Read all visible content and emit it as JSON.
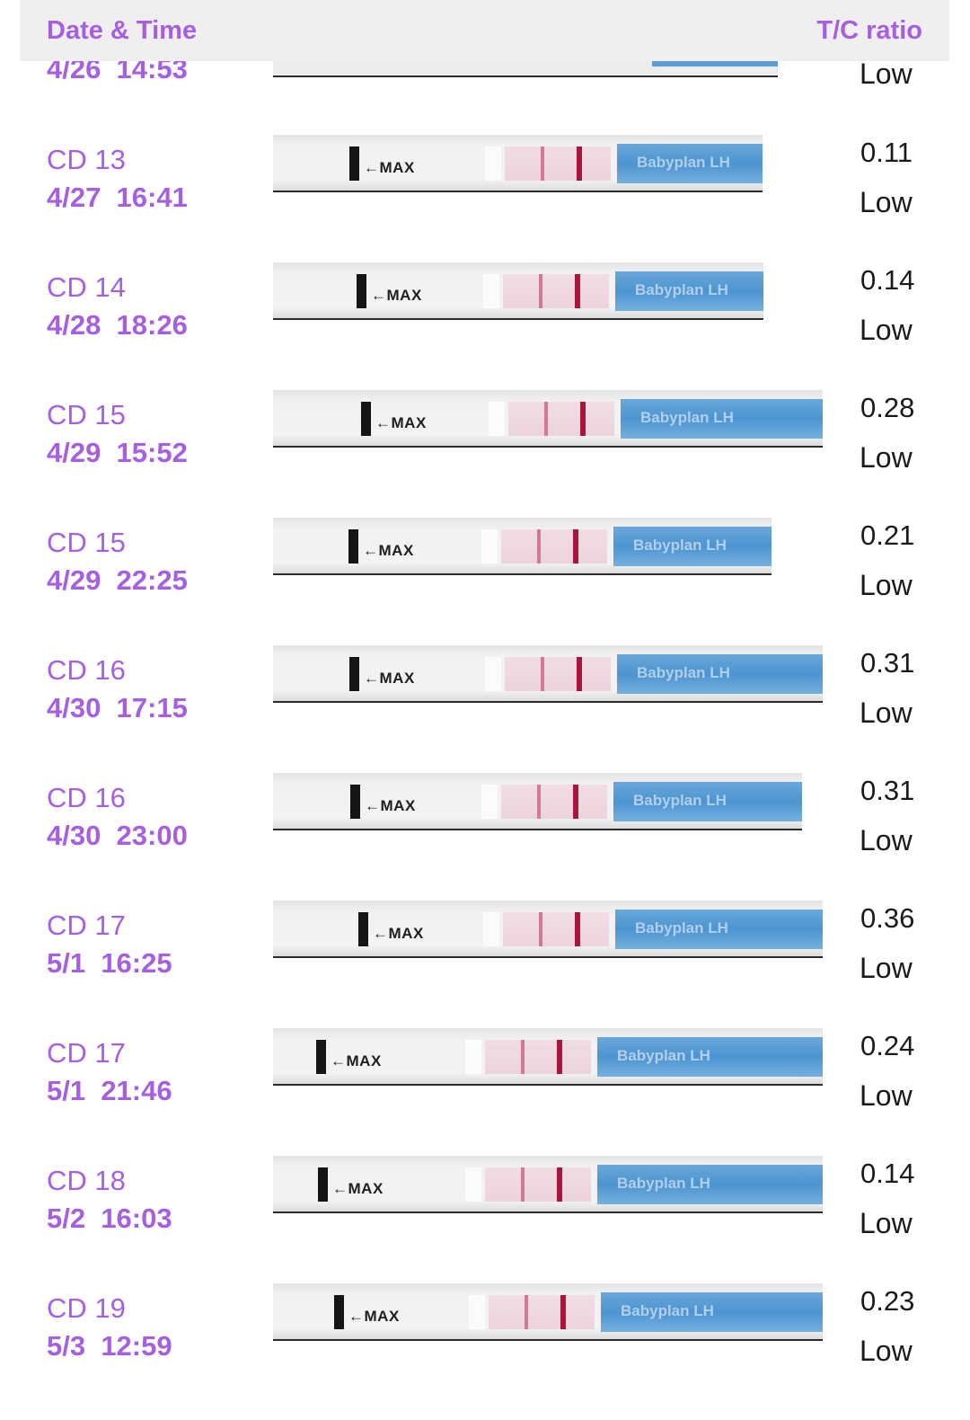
{
  "header": {
    "date_label": "Date & Time",
    "ratio_label": "T/C ratio"
  },
  "partial_row": {
    "date": "4/26  14:53",
    "level": "Low"
  },
  "strip_text": {
    "marker": "←MAX",
    "brand": "Babyplan LH"
  },
  "colors": {
    "accent": "#a55fe0",
    "control_line": "#a8153f",
    "test_line": "#d27a95",
    "strip_blue": "#4d94d1"
  },
  "entries": [
    {
      "cd": "CD 13",
      "date": "4/27  16:41",
      "ratio": "0.11",
      "level": "Low"
    },
    {
      "cd": "CD 14",
      "date": "4/28  18:26",
      "ratio": "0.14",
      "level": "Low"
    },
    {
      "cd": "CD 15",
      "date": "4/29  15:52",
      "ratio": "0.28",
      "level": "Low"
    },
    {
      "cd": "CD 15",
      "date": "4/29  22:25",
      "ratio": "0.21",
      "level": "Low"
    },
    {
      "cd": "CD 16",
      "date": "4/30  17:15",
      "ratio": "0.31",
      "level": "Low"
    },
    {
      "cd": "CD 16",
      "date": "4/30  23:00",
      "ratio": "0.31",
      "level": "Low"
    },
    {
      "cd": "CD 17",
      "date": "5/1  16:25",
      "ratio": "0.36",
      "level": "Low"
    },
    {
      "cd": "CD 17",
      "date": "5/1  21:46",
      "ratio": "0.24",
      "level": "Low"
    },
    {
      "cd": "CD 18",
      "date": "5/2  16:03",
      "ratio": "0.14",
      "level": "Low"
    },
    {
      "cd": "CD 19",
      "date": "5/3  12:59",
      "ratio": "0.23",
      "level": "Low"
    }
  ]
}
